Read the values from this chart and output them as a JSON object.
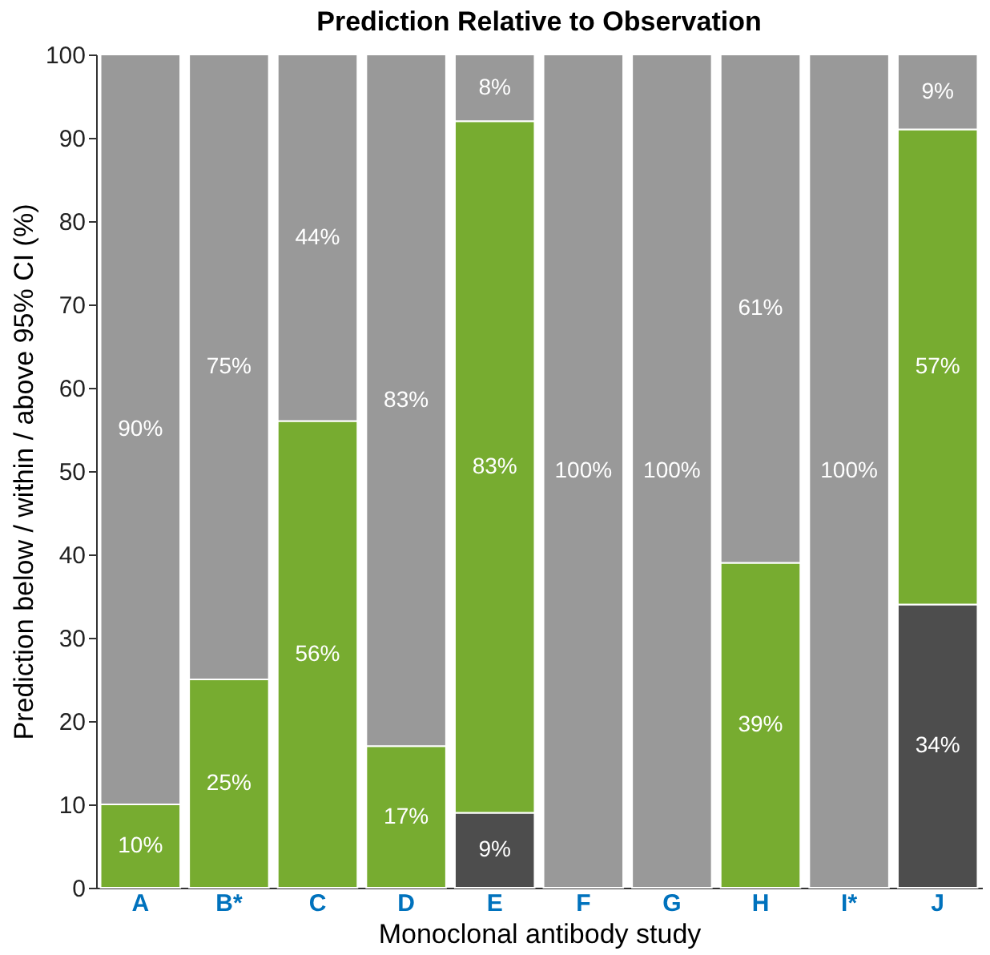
{
  "chart_data": {
    "type": "bar",
    "stacked": true,
    "title": "Prediction Relative to Observation",
    "xlabel": "Monoclonal antibody study",
    "ylabel": "Prediction below / within / above 95% CI (%)",
    "categories": [
      "A",
      "B*",
      "C",
      "D",
      "E",
      "F",
      "G",
      "H",
      "I*",
      "J"
    ],
    "series": [
      {
        "color": "#4d4d4d",
        "values": [
          0,
          0,
          0,
          0,
          9,
          0,
          0,
          0,
          0,
          34
        ],
        "value_labels": [
          null,
          null,
          null,
          null,
          "9%",
          null,
          null,
          null,
          null,
          "34%"
        ]
      },
      {
        "color": "#77ac30",
        "values": [
          10,
          25,
          56,
          17,
          83,
          0,
          0,
          39,
          0,
          57
        ],
        "value_labels": [
          "10%",
          "25%",
          "56%",
          "17%",
          "83%",
          null,
          null,
          "39%",
          null,
          "57%"
        ]
      },
      {
        "color": "#999999",
        "values": [
          90,
          75,
          44,
          83,
          8,
          100,
          100,
          61,
          100,
          9
        ],
        "value_labels": [
          "90%",
          "75%",
          "44%",
          "83%",
          "8%",
          "100%",
          "100%",
          "61%",
          "100%",
          "9%"
        ]
      }
    ],
    "ylim": [
      0,
      100
    ],
    "yticks": [
      0,
      10,
      20,
      30,
      40,
      50,
      60,
      70,
      80,
      90,
      100
    ],
    "grid": false,
    "legend": false
  }
}
